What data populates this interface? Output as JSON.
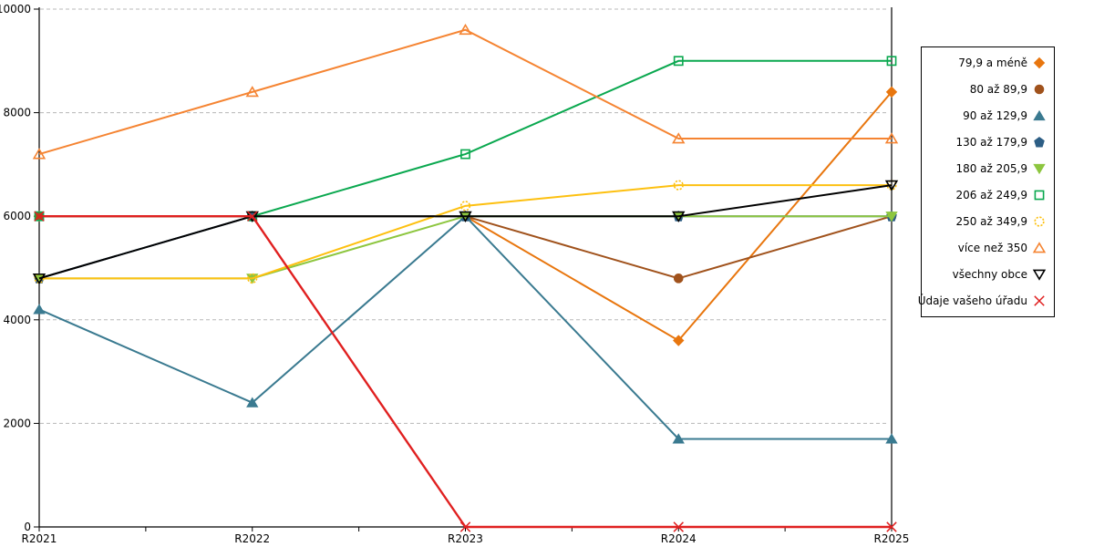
{
  "chart_data": {
    "type": "line",
    "title": "",
    "xlabel": "",
    "ylabel": "",
    "x_labels": [
      "R2021",
      "R2022",
      "R2023",
      "R2024",
      "R2025"
    ],
    "y_ticks": [
      0,
      2000,
      4000,
      6000,
      8000,
      10000
    ],
    "ylim": [
      0,
      10000
    ],
    "grid": "horizontal-dashed",
    "grid_color": "#b8b8b8",
    "axis_color": "#000000",
    "legend_position": "right-box",
    "series": [
      {
        "name": "79,9 a méně",
        "color": "#e8760e",
        "marker": "diamond-icon",
        "filled": true,
        "values": [
          6000,
          6000,
          6000,
          3600,
          8400
        ]
      },
      {
        "name": "80 až 89,9",
        "color": "#a0521c",
        "marker": "circle-icon",
        "filled": true,
        "values": [
          6000,
          6000,
          6000,
          4800,
          6000
        ]
      },
      {
        "name": "90 až 129,9",
        "color": "#3a7a90",
        "marker": "triangle-up-icon",
        "filled": true,
        "values": [
          4200,
          2400,
          6000,
          1700,
          1700
        ]
      },
      {
        "name": "130 až 179,9",
        "color": "#2d5e85",
        "marker": "pentagon-icon",
        "filled": true,
        "values": [
          4800,
          6000,
          6000,
          6000,
          6000
        ]
      },
      {
        "name": "180 až 205,9",
        "color": "#8dc63f",
        "marker": "triangle-down-icon",
        "filled": true,
        "values": [
          4800,
          4800,
          6000,
          6000,
          6000
        ]
      },
      {
        "name": "206 až 249,9",
        "color": "#0aa84f",
        "marker": "square-icon",
        "filled": false,
        "values": [
          6000,
          6000,
          7200,
          9000,
          9000
        ]
      },
      {
        "name": "250 až 349,9",
        "color": "#fdc010",
        "marker": "circle-icon",
        "filled": false,
        "dashed_marker": true,
        "values": [
          4800,
          4800,
          6200,
          6600,
          6600
        ]
      },
      {
        "name": "více než 350",
        "color": "#f58432",
        "marker": "triangle-up-icon",
        "filled": false,
        "values": [
          7200,
          8400,
          9600,
          7500,
          7500
        ]
      },
      {
        "name": "všechny obce",
        "color": "#000000",
        "marker": "triangle-down-icon",
        "filled": false,
        "values": [
          4800,
          6000,
          6000,
          6000,
          6600
        ]
      },
      {
        "name": "Údaje vašeho úřadu",
        "color": "#e02020",
        "marker": "x-icon",
        "filled": false,
        "values": [
          6000,
          6000,
          0,
          0,
          0
        ]
      }
    ]
  }
}
